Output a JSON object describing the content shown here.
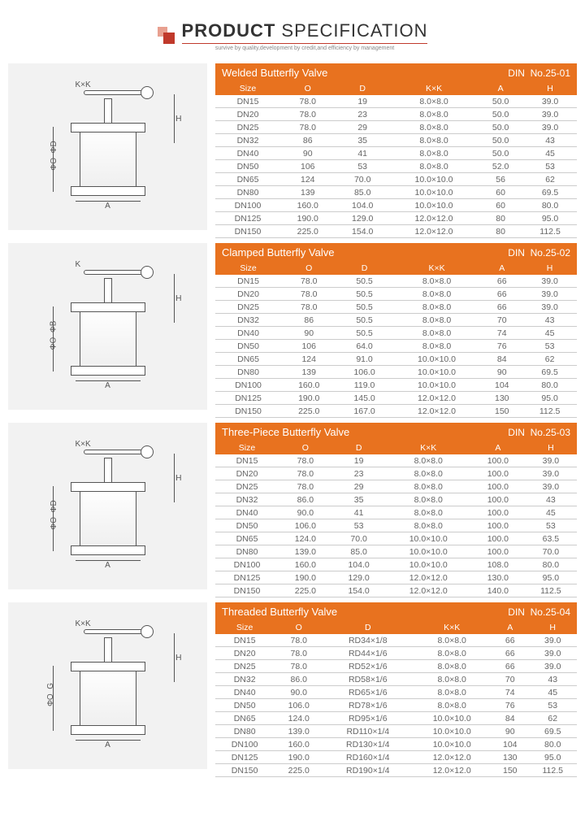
{
  "header": {
    "title_bold": "PRODUCT",
    "title_light": "SPECIFICATION",
    "tagline": "survive by quality,development by credit,and efficiency by management"
  },
  "columns": [
    "Size",
    "O",
    "D",
    "K×K",
    "A",
    "H"
  ],
  "sections": [
    {
      "name": "Welded Butterfly Valve",
      "std": "DIN",
      "code": "No.25-01",
      "dim_labels": [
        "K×K",
        "ΦO",
        "ΦD",
        "A",
        "H"
      ],
      "rows": [
        [
          "DN15",
          "78.0",
          "19",
          "8.0×8.0",
          "50.0",
          "39.0"
        ],
        [
          "DN20",
          "78.0",
          "23",
          "8.0×8.0",
          "50.0",
          "39.0"
        ],
        [
          "DN25",
          "78.0",
          "29",
          "8.0×8.0",
          "50.0",
          "39.0"
        ],
        [
          "DN32",
          "86",
          "35",
          "8.0×8.0",
          "50.0",
          "43"
        ],
        [
          "DN40",
          "90",
          "41",
          "8.0×8.0",
          "50.0",
          "45"
        ],
        [
          "DN50",
          "106",
          "53",
          "8.0×8.0",
          "52.0",
          "53"
        ],
        [
          "DN65",
          "124",
          "70.0",
          "10.0×10.0",
          "56",
          "62"
        ],
        [
          "DN80",
          "139",
          "85.0",
          "10.0×10.0",
          "60",
          "69.5"
        ],
        [
          "DN100",
          "160.0",
          "104.0",
          "10.0×10.0",
          "60",
          "80.0"
        ],
        [
          "DN125",
          "190.0",
          "129.0",
          "12.0×12.0",
          "80",
          "95.0"
        ],
        [
          "DN150",
          "225.0",
          "154.0",
          "12.0×12.0",
          "80",
          "112.5"
        ]
      ]
    },
    {
      "name": "Clamped Butterfly Valve",
      "std": "DIN",
      "code": "No.25-02",
      "dim_labels": [
        "K",
        "ΦO",
        "ΦB",
        "A",
        "H"
      ],
      "rows": [
        [
          "DN15",
          "78.0",
          "50.5",
          "8.0×8.0",
          "66",
          "39.0"
        ],
        [
          "DN20",
          "78.0",
          "50.5",
          "8.0×8.0",
          "66",
          "39.0"
        ],
        [
          "DN25",
          "78.0",
          "50.5",
          "8.0×8.0",
          "66",
          "39.0"
        ],
        [
          "DN32",
          "86",
          "50.5",
          "8.0×8.0",
          "70",
          "43"
        ],
        [
          "DN40",
          "90",
          "50.5",
          "8.0×8.0",
          "74",
          "45"
        ],
        [
          "DN50",
          "106",
          "64.0",
          "8.0×8.0",
          "76",
          "53"
        ],
        [
          "DN65",
          "124",
          "91.0",
          "10.0×10.0",
          "84",
          "62"
        ],
        [
          "DN80",
          "139",
          "106.0",
          "10.0×10.0",
          "90",
          "69.5"
        ],
        [
          "DN100",
          "160.0",
          "119.0",
          "10.0×10.0",
          "104",
          "80.0"
        ],
        [
          "DN125",
          "190.0",
          "145.0",
          "12.0×12.0",
          "130",
          "95.0"
        ],
        [
          "DN150",
          "225.0",
          "167.0",
          "12.0×12.0",
          "150",
          "112.5"
        ]
      ]
    },
    {
      "name": "Three-Piece Butterfly Valve",
      "std": "DIN",
      "code": "No.25-03",
      "dim_labels": [
        "K×K",
        "ΦO",
        "ΦD",
        "A",
        "H"
      ],
      "rows": [
        [
          "DN15",
          "78.0",
          "19",
          "8.0×8.0",
          "100.0",
          "39.0"
        ],
        [
          "DN20",
          "78.0",
          "23",
          "8.0×8.0",
          "100.0",
          "39.0"
        ],
        [
          "DN25",
          "78.0",
          "29",
          "8.0×8.0",
          "100.0",
          "39.0"
        ],
        [
          "DN32",
          "86.0",
          "35",
          "8.0×8.0",
          "100.0",
          "43"
        ],
        [
          "DN40",
          "90.0",
          "41",
          "8.0×8.0",
          "100.0",
          "45"
        ],
        [
          "DN50",
          "106.0",
          "53",
          "8.0×8.0",
          "100.0",
          "53"
        ],
        [
          "DN65",
          "124.0",
          "70.0",
          "10.0×10.0",
          "100.0",
          "63.5"
        ],
        [
          "DN80",
          "139.0",
          "85.0",
          "10.0×10.0",
          "100.0",
          "70.0"
        ],
        [
          "DN100",
          "160.0",
          "104.0",
          "10.0×10.0",
          "108.0",
          "80.0"
        ],
        [
          "DN125",
          "190.0",
          "129.0",
          "12.0×12.0",
          "130.0",
          "95.0"
        ],
        [
          "DN150",
          "225.0",
          "154.0",
          "12.0×12.0",
          "140.0",
          "112.5"
        ]
      ]
    },
    {
      "name": "Threaded Butterfly Valve",
      "std": "DIN",
      "code": "No.25-04",
      "dim_labels": [
        "K×K",
        "ΦO",
        "G",
        "A",
        "H"
      ],
      "rows": [
        [
          "DN15",
          "78.0",
          "RD34×1/8",
          "8.0×8.0",
          "66",
          "39.0"
        ],
        [
          "DN20",
          "78.0",
          "RD44×1/6",
          "8.0×8.0",
          "66",
          "39.0"
        ],
        [
          "DN25",
          "78.0",
          "RD52×1/6",
          "8.0×8.0",
          "66",
          "39.0"
        ],
        [
          "DN32",
          "86.0",
          "RD58×1/6",
          "8.0×8.0",
          "70",
          "43"
        ],
        [
          "DN40",
          "90.0",
          "RD65×1/6",
          "8.0×8.0",
          "74",
          "45"
        ],
        [
          "DN50",
          "106.0",
          "RD78×1/6",
          "8.0×8.0",
          "76",
          "53"
        ],
        [
          "DN65",
          "124.0",
          "RD95×1/6",
          "10.0×10.0",
          "84",
          "62"
        ],
        [
          "DN80",
          "139.0",
          "RD110×1/4",
          "10.0×10.0",
          "90",
          "69.5"
        ],
        [
          "DN100",
          "160.0",
          "RD130×1/4",
          "10.0×10.0",
          "104",
          "80.0"
        ],
        [
          "DN125",
          "190.0",
          "RD160×1/4",
          "12.0×12.0",
          "130",
          "95.0"
        ],
        [
          "DN150",
          "225.0",
          "RD190×1/4",
          "12.0×12.0",
          "150",
          "112.5"
        ]
      ]
    }
  ]
}
